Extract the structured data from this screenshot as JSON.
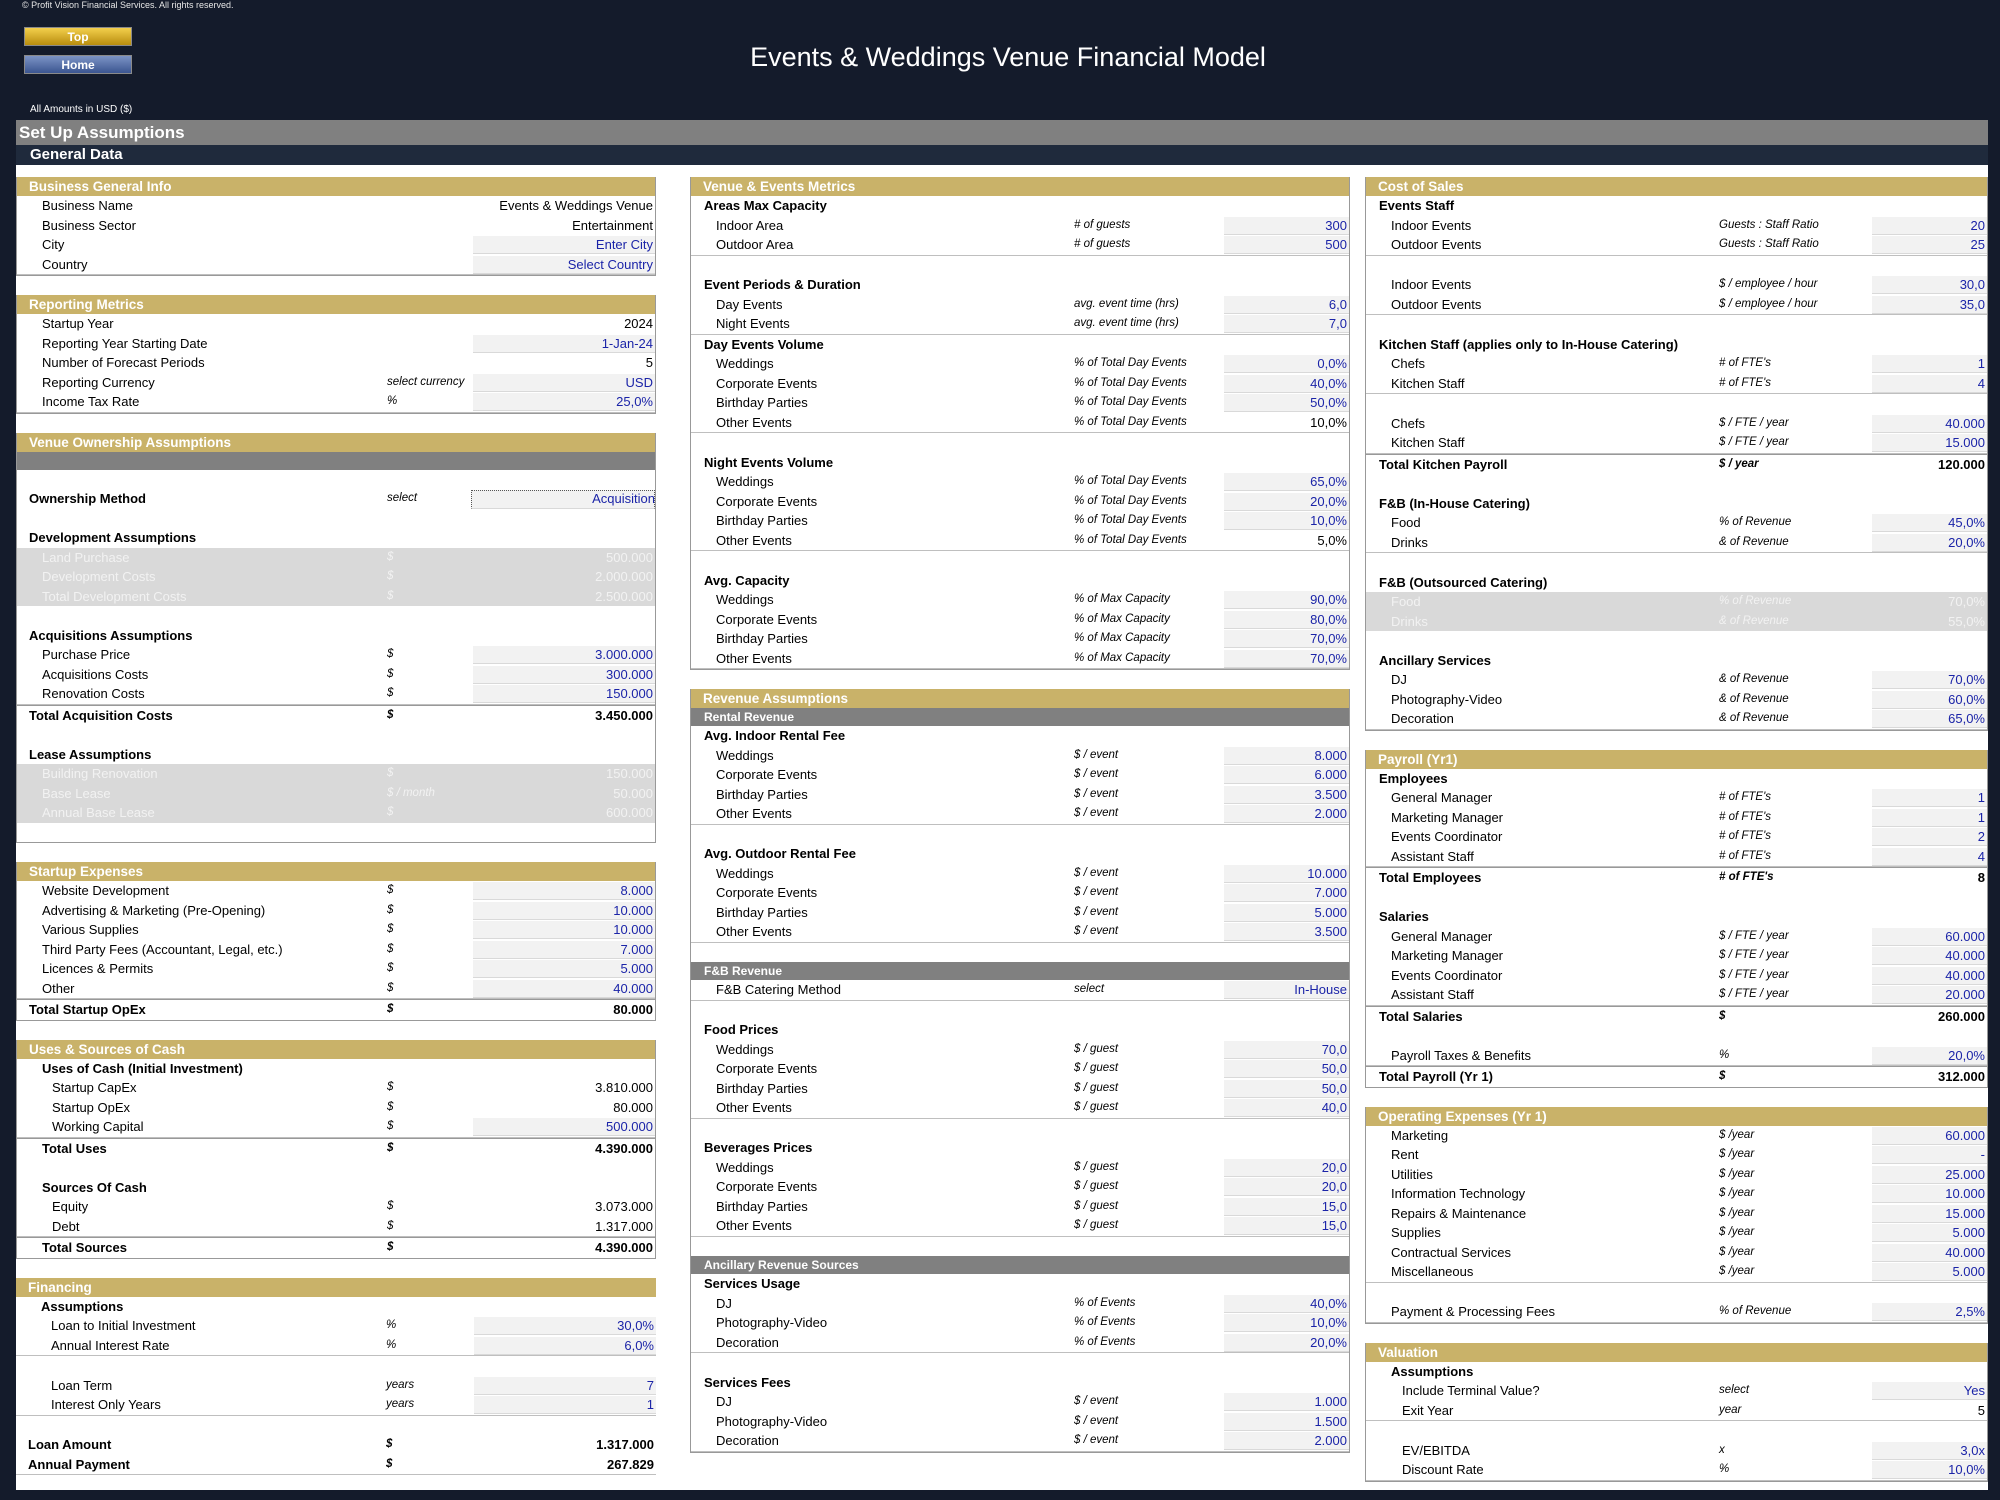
{
  "copyright": "© Profit Vision Financial Services. All rights reserved.",
  "nav": {
    "top": "Top",
    "home": "Home"
  },
  "title": "Events & Weddings Venue Financial Model",
  "amounts_label": "All Amounts in  USD ($)",
  "setup_label": "Set Up Assumptions",
  "general_label": "General Data",
  "col1": {
    "business": {
      "header": "Business General Info",
      "rows": [
        {
          "label": "Business Name",
          "value": "Events & Weddings Venue"
        },
        {
          "label": "Business Sector",
          "value": "Entertainment"
        },
        {
          "label": "City",
          "value": "Enter City"
        },
        {
          "label": "Country",
          "value": "Select Country"
        }
      ]
    },
    "reporting": {
      "header": "Reporting Metrics",
      "rows": [
        {
          "label": "Startup Year",
          "value": "2024"
        },
        {
          "label": "Reporting Year Starting Date",
          "value": "1-Jan-24"
        },
        {
          "label": "Number of Forecast Periods",
          "value": "5"
        },
        {
          "label": "Reporting Currency",
          "unit": "select currency",
          "value": "USD"
        },
        {
          "label": "Income Tax Rate",
          "unit": "%",
          "value": "25,0%"
        }
      ]
    },
    "ownership": {
      "header": "Venue Ownership Assumptions",
      "method_label": "Ownership Method",
      "method_unit": "select",
      "method_value": "Acquisition",
      "dev_title": "Development Assumptions",
      "dev_rows": [
        {
          "label": "Land Purchase",
          "unit": "$",
          "value": "500.000"
        },
        {
          "label": "Development Costs",
          "unit": "$",
          "value": "2.000.000"
        },
        {
          "label": "Total Development Costs",
          "unit": "$",
          "value": "2.500.000"
        }
      ],
      "acq_title": "Acquisitions Assumptions",
      "acq_rows": [
        {
          "label": "Purchase Price",
          "unit": "$",
          "value": "3.000.000"
        },
        {
          "label": "Acquisitions Costs",
          "unit": "$",
          "value": "300.000"
        },
        {
          "label": "Renovation Costs",
          "unit": "$",
          "value": "150.000"
        }
      ],
      "acq_total": {
        "label": "Total Acquisition Costs",
        "unit": "$",
        "value": "3.450.000"
      },
      "lease_title": "Lease Assumptions",
      "lease_rows": [
        {
          "label": "Building Renovation",
          "unit": "$",
          "value": "150.000"
        },
        {
          "label": "Base Lease",
          "unit": "$ / month",
          "value": "50.000"
        },
        {
          "label": "Annual Base Lease",
          "unit": "$",
          "value": "600.000"
        }
      ]
    },
    "startup": {
      "header": "Startup Expenses",
      "rows": [
        {
          "label": "Website Development",
          "unit": "$",
          "value": "8.000"
        },
        {
          "label": "Advertising & Marketing (Pre-Opening)",
          "unit": "$",
          "value": "10.000"
        },
        {
          "label": "Various Supplies",
          "unit": "$",
          "value": "10.000"
        },
        {
          "label": "Third Party Fees (Accountant, Legal, etc.)",
          "unit": "$",
          "value": "7.000"
        },
        {
          "label": "Licences & Permits",
          "unit": "$",
          "value": "5.000"
        },
        {
          "label": "Other",
          "unit": "$",
          "value": "40.000"
        }
      ],
      "total": {
        "label": "Total Startup OpEx",
        "unit": "$",
        "value": "80.000"
      }
    },
    "uses": {
      "header": "Uses & Sources of Cash",
      "uses_title": "Uses of Cash (Initial Investment)",
      "uses_rows": [
        {
          "label": "Startup CapEx",
          "unit": "$",
          "value": "3.810.000"
        },
        {
          "label": "Startup OpEx",
          "unit": "$",
          "value": "80.000"
        },
        {
          "label": "Working Capital",
          "unit": "$",
          "value": "500.000"
        }
      ],
      "uses_total": {
        "label": "Total Uses",
        "unit": "$",
        "value": "4.390.000"
      },
      "sources_title": "Sources Of Cash",
      "sources_rows": [
        {
          "label": "Equity",
          "unit": "$",
          "value": "3.073.000"
        },
        {
          "label": "Debt",
          "unit": "$",
          "value": "1.317.000"
        }
      ],
      "sources_total": {
        "label": "Total Sources",
        "unit": "$",
        "value": "4.390.000"
      }
    },
    "financing": {
      "header": "Financing",
      "assump_title": "Assumptions",
      "rows1": [
        {
          "label": "Loan to Initial Investment",
          "unit": "%",
          "value": "30,0%"
        },
        {
          "label": "Annual Interest Rate",
          "unit": "%",
          "value": "6,0%"
        }
      ],
      "rows2": [
        {
          "label": "Loan Term",
          "unit": "years",
          "value": "7"
        },
        {
          "label": "Interest Only Years",
          "unit": "years",
          "value": "1"
        }
      ],
      "rows3": [
        {
          "label": "Loan Amount",
          "unit": "$",
          "value": "1.317.000"
        },
        {
          "label": "Annual Payment",
          "unit": "$",
          "value": "267.829"
        }
      ]
    }
  },
  "col2": {
    "venue": {
      "header": "Venue & Events Metrics",
      "cap_title": "Areas Max Capacity",
      "cap_rows": [
        {
          "label": "Indoor Area",
          "unit": "# of guests",
          "value": "300"
        },
        {
          "label": "Outdoor Area",
          "unit": "# of guests",
          "value": "500"
        }
      ],
      "periods_title": "Event Periods & Duration",
      "periods_rows": [
        {
          "label": "Day Events",
          "unit": "avg. event time (hrs)",
          "value": "6,0"
        },
        {
          "label": "Night Events",
          "unit": "avg. event time (hrs)",
          "value": "7,0"
        }
      ],
      "day_title": "Day Events Volume",
      "day_rows": [
        {
          "label": "Weddings",
          "unit": "% of Total Day Events",
          "value": "0,0%"
        },
        {
          "label": "Corporate Events",
          "unit": "% of Total Day Events",
          "value": "40,0%"
        },
        {
          "label": "Birthday Parties",
          "unit": "% of Total Day Events",
          "value": "50,0%"
        },
        {
          "label": "Other Events",
          "unit": "% of Total Day Events",
          "value": "10,0%"
        }
      ],
      "night_title": "Night Events Volume",
      "night_rows": [
        {
          "label": "Weddings",
          "unit": "% of Total Day Events",
          "value": "65,0%"
        },
        {
          "label": "Corporate Events",
          "unit": "% of Total Day Events",
          "value": "20,0%"
        },
        {
          "label": "Birthday Parties",
          "unit": "% of Total Day Events",
          "value": "10,0%"
        },
        {
          "label": "Other Events",
          "unit": "% of Total Day Events",
          "value": "5,0%"
        }
      ],
      "avgcap_title": "Avg. Capacity",
      "avgcap_rows": [
        {
          "label": "Weddings",
          "unit": "% of Max Capacity",
          "value": "90,0%"
        },
        {
          "label": "Corporate Events",
          "unit": "% of Max Capacity",
          "value": "80,0%"
        },
        {
          "label": "Birthday Parties",
          "unit": "% of Max Capacity",
          "value": "70,0%"
        },
        {
          "label": "Other Events",
          "unit": "% of Max Capacity",
          "value": "70,0%"
        }
      ]
    },
    "revenue": {
      "header": "Revenue Assumptions",
      "rental_sub": "Rental Revenue",
      "indoor_title": "Avg. Indoor Rental Fee",
      "indoor_rows": [
        {
          "label": "Weddings",
          "unit": "$ / event",
          "value": "8.000"
        },
        {
          "label": "Corporate Events",
          "unit": "$ / event",
          "value": "6.000"
        },
        {
          "label": "Birthday Parties",
          "unit": "$ / event",
          "value": "3.500"
        },
        {
          "label": "Other Events",
          "unit": "$ / event",
          "value": "2.000"
        }
      ],
      "outdoor_title": "Avg. Outdoor Rental Fee",
      "outdoor_rows": [
        {
          "label": "Weddings",
          "unit": "$ / event",
          "value": "10.000"
        },
        {
          "label": "Corporate Events",
          "unit": "$ / event",
          "value": "7.000"
        },
        {
          "label": "Birthday Parties",
          "unit": "$ / event",
          "value": "5.000"
        },
        {
          "label": "Other Events",
          "unit": "$ / event",
          "value": "3.500"
        }
      ],
      "fb_sub": "F&B Revenue",
      "fb_method": {
        "label": "F&B Catering Method",
        "unit": "select",
        "value": "In-House"
      },
      "food_title": "Food Prices",
      "food_rows": [
        {
          "label": "Weddings",
          "unit": "$ / guest",
          "value": "70,0"
        },
        {
          "label": "Corporate Events",
          "unit": "$ / guest",
          "value": "50,0"
        },
        {
          "label": "Birthday Parties",
          "unit": "$ / guest",
          "value": "50,0"
        },
        {
          "label": "Other Events",
          "unit": "$ / guest",
          "value": "40,0"
        }
      ],
      "bev_title": "Beverages Prices",
      "bev_rows": [
        {
          "label": "Weddings",
          "unit": "$ / guest",
          "value": "20,0"
        },
        {
          "label": "Corporate Events",
          "unit": "$ / guest",
          "value": "20,0"
        },
        {
          "label": "Birthday Parties",
          "unit": "$ / guest",
          "value": "15,0"
        },
        {
          "label": "Other Events",
          "unit": "$ / guest",
          "value": "15,0"
        }
      ],
      "anc_sub": "Ancillary Revenue Sources",
      "usage_title": "Services Usage",
      "usage_rows": [
        {
          "label": "DJ",
          "unit": "% of Events",
          "value": "40,0%"
        },
        {
          "label": "Photography-Video",
          "unit": "% of Events",
          "value": "10,0%"
        },
        {
          "label": "Decoration",
          "unit": "% of Events",
          "value": "20,0%"
        }
      ],
      "fees_title": "Services Fees",
      "fees_rows": [
        {
          "label": "DJ",
          "unit": "$ / event",
          "value": "1.000"
        },
        {
          "label": "Photography-Video",
          "unit": "$ / event",
          "value": "1.500"
        },
        {
          "label": "Decoration",
          "unit": "$ / event",
          "value": "2.000"
        }
      ]
    }
  },
  "col3": {
    "cos": {
      "header": "Cost of Sales",
      "staff_title": "Events Staff",
      "staff_rows1": [
        {
          "label": "Indoor Events",
          "unit": "Guests : Staff Ratio",
          "value": "20"
        },
        {
          "label": "Outdoor Events",
          "unit": "Guests : Staff Ratio",
          "value": "25"
        }
      ],
      "staff_rows2": [
        {
          "label": "Indoor Events",
          "unit": "$ / employee / hour",
          "value": "30,0"
        },
        {
          "label": "Outdoor Events",
          "unit": "$ / employee / hour",
          "value": "35,0"
        }
      ],
      "kitchen_title": "Kitchen Staff (applies only to In-House Catering)",
      "kitchen_rows1": [
        {
          "label": "Chefs",
          "unit": "# of FTE's",
          "value": "1"
        },
        {
          "label": "Kitchen Staff",
          "unit": "# of FTE's",
          "value": "4"
        }
      ],
      "kitchen_rows2": [
        {
          "label": "Chefs",
          "unit": "$ / FTE /  year",
          "value": "40.000"
        },
        {
          "label": "Kitchen Staff",
          "unit": "$ / FTE /  year",
          "value": "15.000"
        }
      ],
      "kitchen_total": {
        "label": "Total Kitchen Payroll",
        "unit": "$ / year",
        "value": "120.000"
      },
      "fbin_title": "F&B (In-House Catering)",
      "fbin_rows": [
        {
          "label": "Food",
          "unit": "% of Revenue",
          "value": "45,0%"
        },
        {
          "label": "Drinks",
          "unit": "& of Revenue",
          "value": "20,0%"
        }
      ],
      "fbout_title": "F&B (Outsourced Catering)",
      "fbout_rows": [
        {
          "label": "Food",
          "unit": "% of Revenue",
          "value": "70,0%"
        },
        {
          "label": "Drinks",
          "unit": "& of Revenue",
          "value": "55,0%"
        }
      ],
      "anc_title": "Ancillary Services",
      "anc_rows": [
        {
          "label": "DJ",
          "unit": "& of Revenue",
          "value": "70,0%"
        },
        {
          "label": "Photography-Video",
          "unit": "& of Revenue",
          "value": "60,0%"
        },
        {
          "label": "Decoration",
          "unit": "& of Revenue",
          "value": "65,0%"
        }
      ]
    },
    "payroll": {
      "header": "Payroll (Yr1)",
      "emp_title": "Employees",
      "emp_rows": [
        {
          "label": "General Manager",
          "unit": "# of FTE's",
          "value": "1"
        },
        {
          "label": "Marketing Manager",
          "unit": "# of FTE's",
          "value": "1"
        },
        {
          "label": "Events Coordinator",
          "unit": "# of FTE's",
          "value": "2"
        },
        {
          "label": "Assistant Staff",
          "unit": "# of FTE's",
          "value": "4"
        }
      ],
      "emp_total": {
        "label": "Total Employees",
        "unit": "# of FTE's",
        "value": "8"
      },
      "sal_title": "Salaries",
      "sal_rows": [
        {
          "label": "General Manager",
          "unit": "$ / FTE /  year",
          "value": "60.000"
        },
        {
          "label": "Marketing Manager",
          "unit": "$ / FTE /  year",
          "value": "40.000"
        },
        {
          "label": "Events Coordinator",
          "unit": "$ / FTE /  year",
          "value": "40.000"
        },
        {
          "label": "Assistant Staff",
          "unit": "$ / FTE /  year",
          "value": "20.000"
        }
      ],
      "sal_total": {
        "label": "Total Salaries",
        "unit": "$",
        "value": "260.000"
      },
      "taxes": {
        "label": "Payroll Taxes & Benefits",
        "unit": "%",
        "value": "20,0%"
      },
      "payroll_total": {
        "label": "Total Payroll (Yr 1)",
        "unit": "$",
        "value": "312.000"
      }
    },
    "opex": {
      "header": "Operating Expenses (Yr 1)",
      "rows": [
        {
          "label": "Marketing",
          "unit": "$ /year",
          "value": "60.000"
        },
        {
          "label": "Rent",
          "unit": "$ /year",
          "value": "-"
        },
        {
          "label": "Utilities",
          "unit": "$ /year",
          "value": "25.000"
        },
        {
          "label": "Information Technology",
          "unit": "$ /year",
          "value": "10.000"
        },
        {
          "label": "Repairs & Maintenance",
          "unit": "$ /year",
          "value": "15.000"
        },
        {
          "label": "Supplies",
          "unit": "$ /year",
          "value": "5.000"
        },
        {
          "label": "Contractual Services",
          "unit": "$ /year",
          "value": "40.000"
        },
        {
          "label": "Miscellaneous",
          "unit": "$ /year",
          "value": "5.000"
        }
      ],
      "fees": {
        "label": "Payment & Processing Fees",
        "unit": "% of Revenue",
        "value": "2,5%"
      }
    },
    "valuation": {
      "header": "Valuation",
      "assump_title": "Assumptions",
      "rows1": [
        {
          "label": "Include Terminal Value?",
          "unit": "select",
          "value": "Yes"
        },
        {
          "label": "Exit Year",
          "unit": "year",
          "value": "5"
        }
      ],
      "rows2": [
        {
          "label": "EV/EBITDA",
          "unit": "x",
          "value": "3,0x"
        },
        {
          "label": "Discount Rate",
          "unit": "%",
          "value": "10,0%"
        }
      ]
    }
  }
}
